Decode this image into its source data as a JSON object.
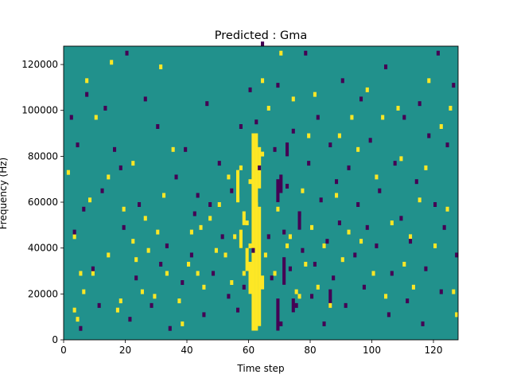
{
  "chart_data": {
    "type": "heatmap",
    "title": "Predicted : Gma",
    "xlabel": "Time step",
    "ylabel": "Frequency (Hz)",
    "xlim": [
      0,
      128
    ],
    "ylim": [
      0,
      128000
    ],
    "x_ticks": [
      0,
      20,
      40,
      60,
      80,
      100,
      120
    ],
    "y_ticks": [
      0,
      20000,
      40000,
      60000,
      80000,
      100000,
      120000
    ],
    "x_tick_labels": [
      "0",
      "20",
      "40",
      "60",
      "80",
      "100",
      "120"
    ],
    "y_tick_labels": [
      "0",
      "20000",
      "40000",
      "60000",
      "80000",
      "100000",
      "120000"
    ],
    "grid": false,
    "legend": "none",
    "colormap": "viridis",
    "background_value": 0,
    "value_colors": {
      "-1": "#440154",
      "0": "#21918c",
      "1": "#fde725"
    },
    "freq_bin_hz": 2000,
    "time_bin": 1,
    "positive_cells": [
      [
        1,
        72000
      ],
      [
        3,
        12000
      ],
      [
        3,
        44000
      ],
      [
        4,
        8000
      ],
      [
        5,
        28000
      ],
      [
        6,
        20000
      ],
      [
        7,
        112000
      ],
      [
        8,
        60000
      ],
      [
        9,
        28000
      ],
      [
        10,
        96000
      ],
      [
        14,
        36000
      ],
      [
        14,
        70000
      ],
      [
        15,
        120000
      ],
      [
        17,
        12000
      ],
      [
        18,
        16000
      ],
      [
        19,
        56000
      ],
      [
        22,
        42000
      ],
      [
        22,
        76000
      ],
      [
        23,
        34000
      ],
      [
        25,
        20000
      ],
      [
        26,
        52000
      ],
      [
        27,
        38000
      ],
      [
        29,
        18000
      ],
      [
        30,
        46000
      ],
      [
        31,
        118000
      ],
      [
        32,
        62000
      ],
      [
        33,
        28000
      ],
      [
        35,
        82000
      ],
      [
        37,
        16000
      ],
      [
        38,
        6000
      ],
      [
        40,
        32000
      ],
      [
        41,
        46000
      ],
      [
        43,
        28000
      ],
      [
        44,
        48000
      ],
      [
        45,
        22000
      ],
      [
        47,
        52000
      ],
      [
        49,
        38000
      ],
      [
        50,
        58000
      ],
      [
        52,
        36000
      ],
      [
        53,
        70000
      ],
      [
        54,
        24000
      ],
      [
        55,
        44000
      ],
      [
        56,
        60000
      ],
      [
        57,
        74000
      ],
      [
        58,
        28000
      ],
      [
        59,
        50000
      ],
      [
        60,
        40000
      ],
      [
        60,
        68000
      ],
      [
        62,
        58000
      ],
      [
        64,
        80000
      ],
      [
        64,
        112000
      ],
      [
        65,
        36000
      ],
      [
        66,
        100000
      ],
      [
        68,
        28000
      ],
      [
        69,
        56000
      ],
      [
        70,
        124000
      ],
      [
        72,
        40000
      ],
      [
        73,
        44000
      ],
      [
        74,
        104000
      ],
      [
        75,
        20000
      ],
      [
        76,
        18000
      ],
      [
        77,
        64000
      ],
      [
        78,
        32000
      ],
      [
        79,
        88000
      ],
      [
        80,
        48000
      ],
      [
        81,
        106000
      ],
      [
        82,
        22000
      ],
      [
        84,
        40000
      ],
      [
        86,
        14000
      ],
      [
        88,
        62000
      ],
      [
        89,
        88000
      ],
      [
        90,
        34000
      ],
      [
        92,
        46000
      ],
      [
        93,
        96000
      ],
      [
        95,
        82000
      ],
      [
        96,
        42000
      ],
      [
        98,
        108000
      ],
      [
        100,
        28000
      ],
      [
        101,
        70000
      ],
      [
        103,
        96000
      ],
      [
        104,
        18000
      ],
      [
        106,
        50000
      ],
      [
        108,
        100000
      ],
      [
        109,
        78000
      ],
      [
        110,
        32000
      ],
      [
        112,
        44000
      ],
      [
        113,
        22000
      ],
      [
        115,
        60000
      ],
      [
        117,
        74000
      ],
      [
        118,
        112000
      ],
      [
        120,
        40000
      ],
      [
        122,
        92000
      ],
      [
        124,
        56000
      ],
      [
        125,
        100000
      ],
      [
        126,
        20000
      ],
      [
        127,
        10000
      ]
    ],
    "negative_cells": [
      [
        2,
        96000
      ],
      [
        3,
        46000
      ],
      [
        4,
        84000
      ],
      [
        5,
        4000
      ],
      [
        6,
        56000
      ],
      [
        7,
        106000
      ],
      [
        9,
        30000
      ],
      [
        11,
        14000
      ],
      [
        12,
        64000
      ],
      [
        13,
        100000
      ],
      [
        16,
        82000
      ],
      [
        18,
        74000
      ],
      [
        19,
        48000
      ],
      [
        20,
        124000
      ],
      [
        21,
        8000
      ],
      [
        23,
        26000
      ],
      [
        24,
        58000
      ],
      [
        26,
        104000
      ],
      [
        28,
        14000
      ],
      [
        30,
        92000
      ],
      [
        31,
        32000
      ],
      [
        33,
        40000
      ],
      [
        34,
        4000
      ],
      [
        36,
        70000
      ],
      [
        38,
        24000
      ],
      [
        39,
        82000
      ],
      [
        41,
        36000
      ],
      [
        42,
        54000
      ],
      [
        43,
        62000
      ],
      [
        45,
        10000
      ],
      [
        46,
        102000
      ],
      [
        47,
        58000
      ],
      [
        48,
        28000
      ],
      [
        50,
        76000
      ],
      [
        51,
        44000
      ],
      [
        53,
        18000
      ],
      [
        54,
        64000
      ],
      [
        56,
        12000
      ],
      [
        57,
        92000
      ],
      [
        58,
        22000
      ],
      [
        60,
        108000
      ],
      [
        61,
        38000
      ],
      [
        62,
        94000
      ],
      [
        63,
        74000
      ],
      [
        64,
        128000
      ],
      [
        66,
        44000
      ],
      [
        67,
        26000
      ],
      [
        68,
        82000
      ],
      [
        69,
        110000
      ],
      [
        70,
        6000
      ],
      [
        71,
        46000
      ],
      [
        72,
        66000
      ],
      [
        73,
        30000
      ],
      [
        74,
        90000
      ],
      [
        75,
        14000
      ],
      [
        76,
        54000
      ],
      [
        77,
        38000
      ],
      [
        78,
        124000
      ],
      [
        79,
        76000
      ],
      [
        80,
        18000
      ],
      [
        81,
        32000
      ],
      [
        82,
        96000
      ],
      [
        83,
        60000
      ],
      [
        84,
        6000
      ],
      [
        85,
        42000
      ],
      [
        86,
        84000
      ],
      [
        87,
        26000
      ],
      [
        88,
        68000
      ],
      [
        89,
        50000
      ],
      [
        90,
        112000
      ],
      [
        91,
        14000
      ],
      [
        92,
        74000
      ],
      [
        94,
        36000
      ],
      [
        95,
        58000
      ],
      [
        96,
        104000
      ],
      [
        97,
        22000
      ],
      [
        98,
        48000
      ],
      [
        99,
        86000
      ],
      [
        101,
        40000
      ],
      [
        102,
        64000
      ],
      [
        104,
        118000
      ],
      [
        105,
        10000
      ],
      [
        106,
        28000
      ],
      [
        107,
        76000
      ],
      [
        109,
        52000
      ],
      [
        110,
        96000
      ],
      [
        111,
        16000
      ],
      [
        112,
        42000
      ],
      [
        114,
        68000
      ],
      [
        115,
        102000
      ],
      [
        116,
        6000
      ],
      [
        117,
        30000
      ],
      [
        118,
        88000
      ],
      [
        120,
        58000
      ],
      [
        121,
        124000
      ],
      [
        122,
        20000
      ],
      [
        123,
        48000
      ],
      [
        124,
        84000
      ],
      [
        126,
        110000
      ],
      [
        127,
        36000
      ]
    ],
    "positive_runs": [
      [
        61,
        4000,
        86000
      ],
      [
        62,
        4000,
        86000
      ],
      [
        63,
        6000,
        52000
      ],
      [
        63,
        66000,
        18000
      ],
      [
        60,
        20000,
        14000
      ],
      [
        59,
        30000,
        10000
      ],
      [
        56,
        60000,
        14000
      ],
      [
        57,
        40000,
        8000
      ],
      [
        64,
        22000,
        6000
      ],
      [
        58,
        50000,
        6000
      ]
    ],
    "negative_runs": [
      [
        69,
        60000,
        10000
      ],
      [
        70,
        64000,
        8000
      ],
      [
        69,
        4000,
        14000
      ],
      [
        71,
        24000,
        12000
      ],
      [
        74,
        12000,
        6000
      ],
      [
        76,
        48000,
        8000
      ],
      [
        72,
        80000,
        6000
      ],
      [
        86,
        14000,
        8000
      ]
    ]
  }
}
